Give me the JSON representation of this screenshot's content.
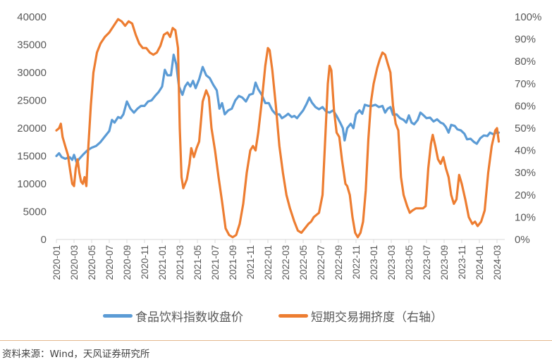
{
  "chart_data": {
    "type": "line",
    "title": "",
    "xlabel": "",
    "ylabel_left": "",
    "ylabel_right": "",
    "left_axis": {
      "min": 0,
      "max": 40000,
      "step": 5000,
      "ticks": [
        "0",
        "5000",
        "10000",
        "15000",
        "20000",
        "25000",
        "30000",
        "35000",
        "40000"
      ]
    },
    "right_axis": {
      "min": 0,
      "max": 1,
      "step": 0.1,
      "ticks": [
        "0%",
        "10%",
        "20%",
        "30%",
        "40%",
        "50%",
        "60%",
        "70%",
        "80%",
        "90%",
        "100%"
      ]
    },
    "x_ticks": [
      "2020-01",
      "2020-03",
      "2020-05",
      "2020-07",
      "2020-09",
      "2020-11",
      "2021-01",
      "2021-03",
      "2021-05",
      "2021-07",
      "2021-09",
      "2021-11",
      "2022-01",
      "2022-03",
      "2022-05",
      "2022-07",
      "2022-09",
      "2022-11",
      "2023-01",
      "2023-03",
      "2023-05",
      "2023-07",
      "2023-09",
      "2023-11",
      "2024-01",
      "2024-03"
    ],
    "grid": false,
    "legend_position": "bottom",
    "series": [
      {
        "name": "食品饮料指数收盘价",
        "axis": "left",
        "color": "#5b9bd5",
        "points_month_value": [
          [
            0,
            15000
          ],
          [
            0.3,
            15500
          ],
          [
            0.6,
            14800
          ],
          [
            1.0,
            14500
          ],
          [
            1.5,
            14800
          ],
          [
            1.8,
            14300
          ],
          [
            2.0,
            15200
          ],
          [
            2.3,
            13800
          ],
          [
            2.6,
            14500
          ],
          [
            3.0,
            15200
          ],
          [
            3.5,
            16000
          ],
          [
            4.0,
            16500
          ],
          [
            4.5,
            16800
          ],
          [
            5.0,
            17500
          ],
          [
            5.5,
            18500
          ],
          [
            6.0,
            19500
          ],
          [
            6.3,
            21500
          ],
          [
            6.6,
            21000
          ],
          [
            7.0,
            22000
          ],
          [
            7.3,
            21800
          ],
          [
            7.6,
            22500
          ],
          [
            8.0,
            24800
          ],
          [
            8.4,
            23500
          ],
          [
            8.8,
            22800
          ],
          [
            9.2,
            23500
          ],
          [
            9.6,
            24000
          ],
          [
            10.0,
            24000
          ],
          [
            10.4,
            24800
          ],
          [
            10.8,
            25000
          ],
          [
            11.2,
            25800
          ],
          [
            11.6,
            26500
          ],
          [
            12.0,
            27500
          ],
          [
            12.3,
            30500
          ],
          [
            12.6,
            29500
          ],
          [
            13.0,
            29500
          ],
          [
            13.3,
            33200
          ],
          [
            13.6,
            31500
          ],
          [
            13.9,
            27500
          ],
          [
            14.3,
            26000
          ],
          [
            14.6,
            27500
          ],
          [
            14.9,
            28200
          ],
          [
            15.2,
            27500
          ],
          [
            15.5,
            28500
          ],
          [
            15.8,
            27200
          ],
          [
            16.2,
            28800
          ],
          [
            16.6,
            31000
          ],
          [
            17.0,
            29500
          ],
          [
            17.4,
            29000
          ],
          [
            17.8,
            27800
          ],
          [
            18.2,
            26800
          ],
          [
            18.5,
            23500
          ],
          [
            18.8,
            24500
          ],
          [
            19.1,
            22500
          ],
          [
            19.5,
            23200
          ],
          [
            19.9,
            23500
          ],
          [
            20.3,
            25000
          ],
          [
            20.7,
            25800
          ],
          [
            21.1,
            25500
          ],
          [
            21.5,
            24800
          ],
          [
            21.9,
            26000
          ],
          [
            22.3,
            26200
          ],
          [
            22.6,
            28200
          ],
          [
            22.9,
            27000
          ],
          [
            23.3,
            26000
          ],
          [
            23.7,
            24500
          ],
          [
            24.1,
            24500
          ],
          [
            24.5,
            23200
          ],
          [
            24.9,
            22500
          ],
          [
            25.3,
            22500
          ],
          [
            25.6,
            21800
          ],
          [
            26.0,
            22200
          ],
          [
            26.3,
            22600
          ],
          [
            26.7,
            22000
          ],
          [
            27.0,
            22200
          ],
          [
            27.3,
            21800
          ],
          [
            27.6,
            22400
          ],
          [
            28.0,
            23200
          ],
          [
            28.4,
            24400
          ],
          [
            28.7,
            25500
          ],
          [
            29.0,
            24600
          ],
          [
            29.4,
            23800
          ],
          [
            29.8,
            23400
          ],
          [
            30.2,
            23800
          ],
          [
            30.6,
            23000
          ],
          [
            31.0,
            22800
          ],
          [
            31.4,
            23200
          ],
          [
            31.8,
            22200
          ],
          [
            32.2,
            21000
          ],
          [
            32.5,
            20000
          ],
          [
            32.7,
            17800
          ],
          [
            33.0,
            20000
          ],
          [
            33.4,
            20800
          ],
          [
            33.7,
            20000
          ],
          [
            34.0,
            22500
          ],
          [
            34.4,
            23200
          ],
          [
            34.7,
            22600
          ],
          [
            35.0,
            24200
          ],
          [
            35.4,
            24000
          ],
          [
            35.8,
            24000
          ],
          [
            36.2,
            24200
          ],
          [
            36.6,
            23800
          ],
          [
            37.0,
            24000
          ],
          [
            37.3,
            22800
          ],
          [
            37.6,
            23500
          ],
          [
            37.9,
            23800
          ],
          [
            38.2,
            22400
          ],
          [
            38.6,
            22500
          ],
          [
            39.0,
            21800
          ],
          [
            39.4,
            21500
          ],
          [
            39.7,
            21000
          ],
          [
            40.0,
            22300
          ],
          [
            40.3,
            21000
          ],
          [
            40.6,
            20700
          ],
          [
            41.0,
            21500
          ],
          [
            41.3,
            22800
          ],
          [
            41.6,
            22400
          ],
          [
            42.0,
            21800
          ],
          [
            42.4,
            21900
          ],
          [
            42.8,
            21200
          ],
          [
            43.2,
            21600
          ],
          [
            43.6,
            21000
          ],
          [
            43.9,
            20800
          ],
          [
            44.2,
            20200
          ],
          [
            44.5,
            19200
          ],
          [
            44.8,
            20600
          ],
          [
            45.2,
            20400
          ],
          [
            45.5,
            19800
          ],
          [
            45.9,
            19600
          ],
          [
            46.3,
            19000
          ],
          [
            46.6,
            18000
          ],
          [
            47.0,
            18100
          ],
          [
            47.4,
            17500
          ],
          [
            47.7,
            17200
          ],
          [
            48.1,
            18200
          ],
          [
            48.5,
            18700
          ],
          [
            48.9,
            18600
          ],
          [
            49.2,
            19200
          ],
          [
            49.6,
            18900
          ],
          [
            50.0,
            19300
          ],
          [
            50.2,
            19200
          ]
        ]
      },
      {
        "name": "短期交易拥挤度（右轴）",
        "axis": "right",
        "color": "#ed7d31",
        "points_month_value": [
          [
            0,
            0.49
          ],
          [
            0.3,
            0.5
          ],
          [
            0.5,
            0.52
          ],
          [
            0.7,
            0.46
          ],
          [
            1.0,
            0.42
          ],
          [
            1.3,
            0.38
          ],
          [
            1.6,
            0.3
          ],
          [
            1.8,
            0.25
          ],
          [
            2.0,
            0.24
          ],
          [
            2.2,
            0.32
          ],
          [
            2.4,
            0.36
          ],
          [
            2.6,
            0.3
          ],
          [
            2.8,
            0.26
          ],
          [
            3.0,
            0.25
          ],
          [
            3.2,
            0.28
          ],
          [
            3.4,
            0.24
          ],
          [
            3.6,
            0.4
          ],
          [
            3.9,
            0.6
          ],
          [
            4.2,
            0.75
          ],
          [
            4.6,
            0.84
          ],
          [
            5.0,
            0.88
          ],
          [
            5.5,
            0.91
          ],
          [
            6.0,
            0.93
          ],
          [
            6.5,
            0.96
          ],
          [
            7.0,
            0.99
          ],
          [
            7.4,
            0.98
          ],
          [
            7.8,
            0.96
          ],
          [
            8.2,
            0.98
          ],
          [
            8.6,
            0.97
          ],
          [
            9.0,
            0.92
          ],
          [
            9.4,
            0.88
          ],
          [
            9.8,
            0.86
          ],
          [
            10.2,
            0.86
          ],
          [
            10.6,
            0.84
          ],
          [
            11.0,
            0.83
          ],
          [
            11.4,
            0.84
          ],
          [
            11.8,
            0.87
          ],
          [
            12.2,
            0.92
          ],
          [
            12.6,
            0.93
          ],
          [
            12.9,
            0.91
          ],
          [
            13.2,
            0.95
          ],
          [
            13.5,
            0.94
          ],
          [
            13.8,
            0.86
          ],
          [
            14.0,
            0.5
          ],
          [
            14.2,
            0.28
          ],
          [
            14.4,
            0.23
          ],
          [
            14.8,
            0.27
          ],
          [
            15.1,
            0.34
          ],
          [
            15.3,
            0.41
          ],
          [
            15.6,
            0.37
          ],
          [
            15.9,
            0.41
          ],
          [
            16.2,
            0.44
          ],
          [
            16.6,
            0.62
          ],
          [
            17.0,
            0.67
          ],
          [
            17.3,
            0.64
          ],
          [
            17.6,
            0.5
          ],
          [
            18.0,
            0.4
          ],
          [
            18.4,
            0.28
          ],
          [
            18.8,
            0.17
          ],
          [
            19.2,
            0.05
          ],
          [
            19.6,
            0.02
          ],
          [
            20.0,
            0.01
          ],
          [
            20.4,
            0.02
          ],
          [
            20.8,
            0.07
          ],
          [
            21.2,
            0.16
          ],
          [
            21.6,
            0.3
          ],
          [
            22.0,
            0.4
          ],
          [
            22.3,
            0.42
          ],
          [
            22.6,
            0.4
          ],
          [
            22.9,
            0.48
          ],
          [
            23.3,
            0.62
          ],
          [
            23.7,
            0.78
          ],
          [
            24.0,
            0.86
          ],
          [
            24.2,
            0.85
          ],
          [
            24.5,
            0.76
          ],
          [
            24.9,
            0.6
          ],
          [
            25.3,
            0.42
          ],
          [
            25.7,
            0.3
          ],
          [
            26.1,
            0.2
          ],
          [
            26.5,
            0.14
          ],
          [
            27.0,
            0.08
          ],
          [
            27.4,
            0.04
          ],
          [
            27.8,
            0.03
          ],
          [
            28.2,
            0.05
          ],
          [
            28.6,
            0.07
          ],
          [
            28.9,
            0.08
          ],
          [
            29.2,
            0.1
          ],
          [
            29.5,
            0.11
          ],
          [
            29.8,
            0.12
          ],
          [
            30.2,
            0.2
          ],
          [
            30.5,
            0.45
          ],
          [
            30.8,
            0.7
          ],
          [
            31.0,
            0.78
          ],
          [
            31.2,
            0.76
          ],
          [
            31.5,
            0.58
          ],
          [
            31.8,
            0.48
          ],
          [
            32.1,
            0.46
          ],
          [
            32.4,
            0.36
          ],
          [
            32.8,
            0.25
          ],
          [
            33.0,
            0.24
          ],
          [
            33.3,
            0.2
          ],
          [
            33.6,
            0.1
          ],
          [
            33.9,
            0.03
          ],
          [
            34.2,
            0.01
          ],
          [
            34.5,
            0.03
          ],
          [
            34.8,
            0.08
          ],
          [
            35.1,
            0.22
          ],
          [
            35.4,
            0.45
          ],
          [
            35.7,
            0.62
          ],
          [
            36.0,
            0.7
          ],
          [
            36.4,
            0.77
          ],
          [
            36.7,
            0.81
          ],
          [
            37.0,
            0.84
          ],
          [
            37.3,
            0.83
          ],
          [
            37.6,
            0.79
          ],
          [
            37.9,
            0.75
          ],
          [
            38.2,
            0.6
          ],
          [
            38.5,
            0.52
          ],
          [
            38.8,
            0.49
          ],
          [
            39.1,
            0.28
          ],
          [
            39.4,
            0.2
          ],
          [
            39.8,
            0.15
          ],
          [
            40.1,
            0.12
          ],
          [
            40.4,
            0.13
          ],
          [
            40.8,
            0.14
          ],
          [
            41.2,
            0.14
          ],
          [
            41.6,
            0.14
          ],
          [
            41.9,
            0.15
          ],
          [
            42.2,
            0.32
          ],
          [
            42.5,
            0.43
          ],
          [
            42.7,
            0.47
          ],
          [
            43.0,
            0.42
          ],
          [
            43.3,
            0.36
          ],
          [
            43.6,
            0.34
          ],
          [
            43.9,
            0.37
          ],
          [
            44.2,
            0.32
          ],
          [
            44.5,
            0.28
          ],
          [
            44.8,
            0.2
          ],
          [
            45.1,
            0.16
          ],
          [
            45.4,
            0.18
          ],
          [
            45.7,
            0.29
          ],
          [
            46.0,
            0.25
          ],
          [
            46.4,
            0.18
          ],
          [
            46.8,
            0.1
          ],
          [
            47.2,
            0.07
          ],
          [
            47.5,
            0.08
          ],
          [
            47.8,
            0.06
          ],
          [
            48.2,
            0.08
          ],
          [
            48.6,
            0.13
          ],
          [
            49.0,
            0.3
          ],
          [
            49.4,
            0.42
          ],
          [
            49.8,
            0.49
          ],
          [
            50.0,
            0.5
          ],
          [
            50.2,
            0.44
          ]
        ]
      }
    ]
  },
  "legend": {
    "items": [
      {
        "label": "食品饮料指数收盘价",
        "color": "#5b9bd5"
      },
      {
        "label": "短期交易拥挤度（右轴）",
        "color": "#ed7d31"
      }
    ]
  },
  "footer": {
    "source": "资料来源：Wind，天风证券研究所"
  }
}
